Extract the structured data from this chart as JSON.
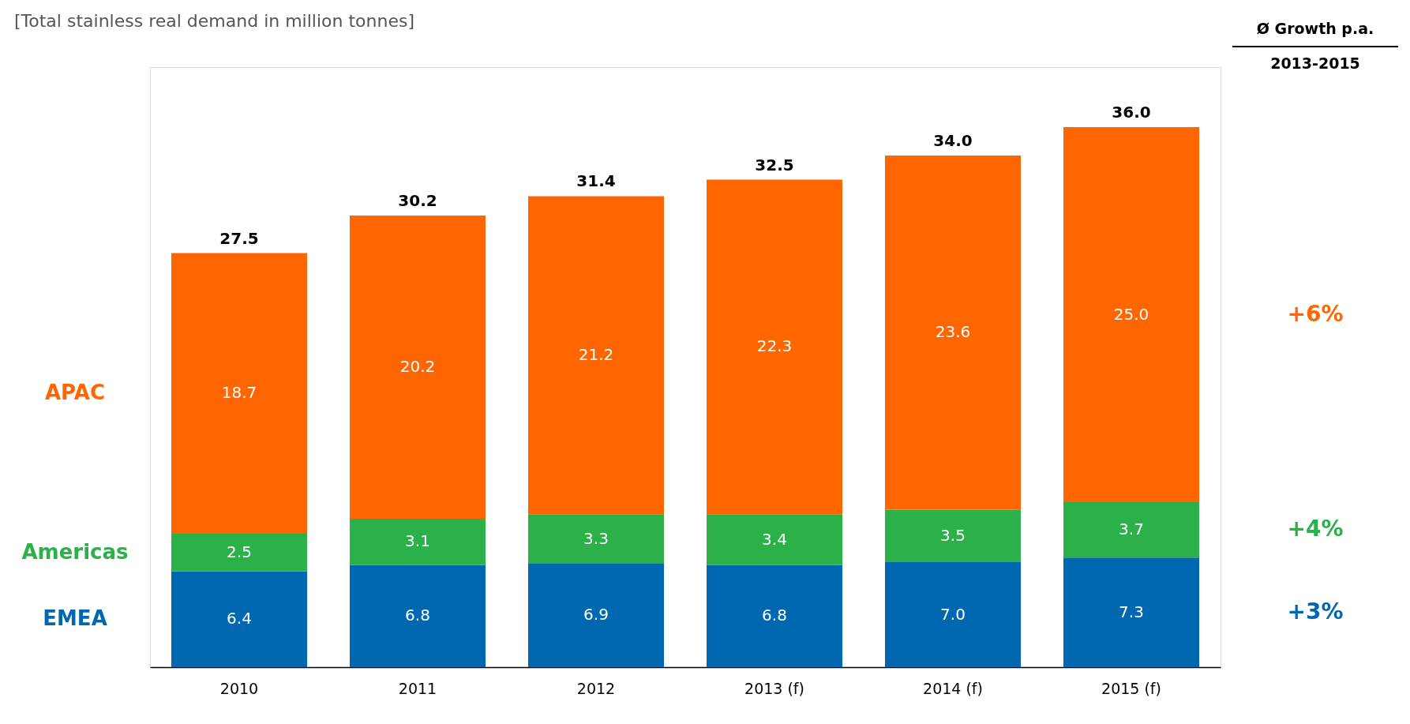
{
  "chart_data": {
    "type": "bar",
    "title": "[Total stainless real demand in million tonnes]",
    "categories": [
      "2010",
      "2011",
      "2012",
      "2013 (f)",
      "2014 (f)",
      "2015 (f)"
    ],
    "stacked": true,
    "series": [
      {
        "name": "EMEA",
        "color": "#0068b0",
        "values": [
          6.4,
          6.8,
          6.9,
          6.8,
          7.0,
          7.3
        ],
        "value_labels": [
          "6.4",
          "6.8",
          "6.9",
          "6.8",
          "7.0",
          "7.3"
        ]
      },
      {
        "name": "Americas",
        "color": "#2bb04a",
        "values": [
          2.5,
          3.1,
          3.3,
          3.4,
          3.5,
          3.7
        ],
        "value_labels": [
          "2.5",
          "3.1",
          "3.3",
          "3.4",
          "3.5",
          "3.7"
        ]
      },
      {
        "name": "APAC",
        "color": "#ff6600",
        "values": [
          18.7,
          20.2,
          21.2,
          22.3,
          23.6,
          25.0
        ],
        "value_labels": [
          "18.7",
          "20.2",
          "21.2",
          "22.3",
          "23.6",
          "25.0"
        ]
      }
    ],
    "totals": [
      "27.5",
      "30.2",
      "31.4",
      "32.5",
      "34.0",
      "36.0"
    ],
    "annotations": [
      "Ø Growth p.a.",
      "2013-2015",
      "+3%",
      "+4%",
      "+6%"
    ]
  }
}
